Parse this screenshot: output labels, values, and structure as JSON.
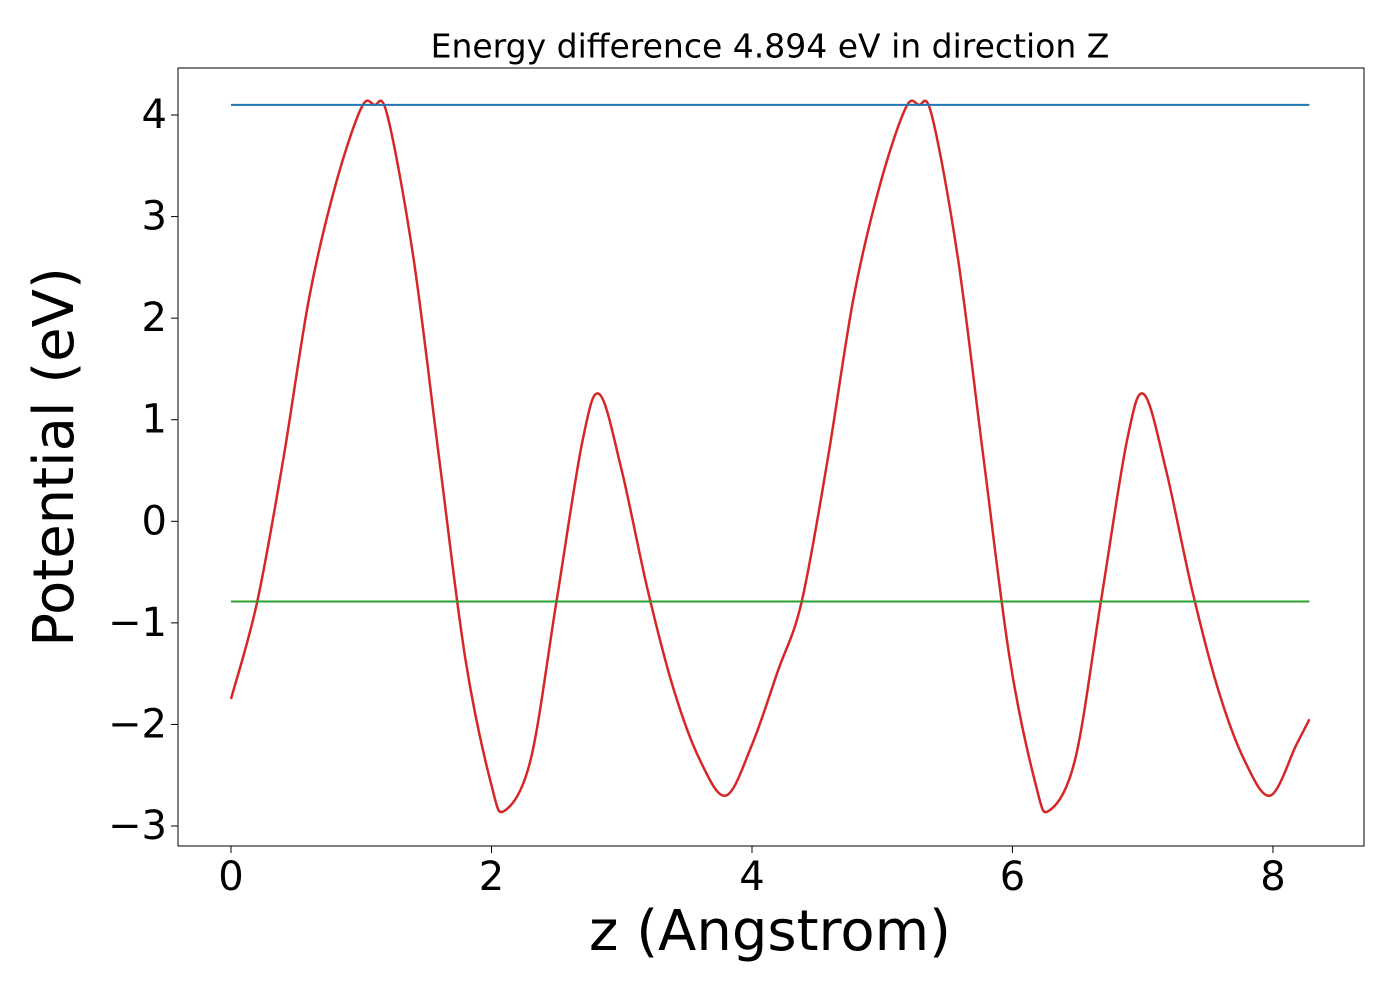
{
  "chart_data": {
    "type": "line",
    "title": "Energy difference 4.894 eV in direction Z",
    "xlabel": "z (Angstrom)",
    "ylabel": "Potential (eV)",
    "xlim": [
      -0.407,
      8.699
    ],
    "ylim": [
      -3.197,
      4.463
    ],
    "xticks": [
      0,
      2,
      4,
      6,
      8
    ],
    "yticks": [
      {
        "value": -3,
        "label": "−3"
      },
      {
        "value": -2,
        "label": "−2"
      },
      {
        "value": -1,
        "label": "−1"
      },
      0,
      1,
      2,
      3,
      4
    ],
    "series": [
      {
        "color": "#d62728",
        "x": [
          0,
          0.2,
          0.4,
          0.6,
          0.8,
          1.0,
          1.1,
          1.2,
          1.4,
          1.6,
          1.8,
          2.0,
          2.1,
          2.3,
          2.5,
          2.7,
          2.83,
          3.0,
          3.2,
          3.4,
          3.6,
          3.8,
          4.0,
          4.2,
          4.38,
          4.58,
          4.78,
          4.98,
          5.18,
          5.28,
          5.38,
          5.58,
          5.78,
          5.98,
          6.18,
          6.28,
          6.48,
          6.68,
          6.88,
          7.01,
          7.18,
          7.38,
          7.58,
          7.78,
          7.98,
          8.18,
          8.28
        ],
        "values": [
          -1.75,
          -0.8,
          0.6,
          2.2,
          3.3,
          4.07,
          4.1,
          4.0,
          2.6,
          0.6,
          -1.36,
          -2.6,
          -2.85,
          -2.35,
          -0.78,
          0.8,
          1.25,
          0.5,
          -0.68,
          -1.66,
          -2.35,
          -2.7,
          -2.2,
          -1.47,
          -0.8,
          0.6,
          2.2,
          3.3,
          4.07,
          4.1,
          4.0,
          2.6,
          0.6,
          -1.36,
          -2.6,
          -2.85,
          -2.35,
          -0.78,
          0.8,
          1.25,
          0.5,
          -0.68,
          -1.66,
          -2.35,
          -2.7,
          -2.2,
          -1.95
        ]
      },
      {
        "color": "#1f77b4",
        "x": [
          0,
          8.28
        ],
        "values": [
          4.1,
          4.1
        ]
      },
      {
        "color": "#2ca02c",
        "x": [
          0,
          8.28
        ],
        "values": [
          -0.79,
          -0.79
        ]
      }
    ]
  }
}
